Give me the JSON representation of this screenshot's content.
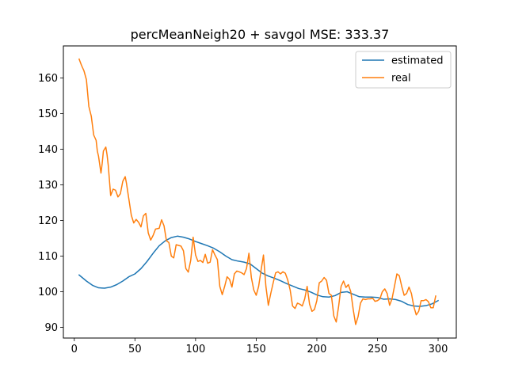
{
  "chart_data": {
    "type": "line",
    "title": "percMeanNeigh20 + savgol MSE: 333.37",
    "xlabel": "",
    "ylabel": "",
    "xlim": [
      -9,
      315
    ],
    "ylim": [
      87,
      169
    ],
    "xticks": [
      0,
      50,
      100,
      150,
      200,
      250,
      300
    ],
    "yticks": [
      90,
      100,
      110,
      120,
      130,
      140,
      150,
      160
    ],
    "grid": false,
    "legend_position": "top-right",
    "series": [
      {
        "name": "estimated",
        "color": "#1f77b4",
        "x": [
          4,
          10,
          15,
          20,
          25,
          30,
          35,
          40,
          45,
          50,
          55,
          60,
          65,
          70,
          75,
          80,
          85,
          90,
          95,
          100,
          105,
          110,
          115,
          120,
          125,
          130,
          135,
          140,
          145,
          150,
          155,
          160,
          165,
          170,
          175,
          180,
          185,
          190,
          195,
          200,
          205,
          210,
          215,
          220,
          225,
          230,
          235,
          240,
          245,
          250,
          255,
          260,
          265,
          270,
          275,
          280,
          285,
          290,
          295,
          300
        ],
        "y": [
          104.7,
          103.0,
          101.8,
          101.1,
          101.0,
          101.3,
          102.0,
          103.0,
          104.2,
          105.0,
          106.5,
          108.5,
          110.8,
          112.9,
          114.3,
          115.2,
          115.6,
          115.3,
          114.8,
          114.1,
          113.5,
          112.9,
          112.2,
          111.2,
          110.0,
          109.0,
          108.6,
          108.3,
          107.8,
          106.5,
          105.2,
          104.4,
          103.8,
          103.1,
          102.3,
          101.6,
          100.9,
          100.5,
          99.9,
          99.1,
          98.6,
          98.5,
          98.9,
          99.8,
          100.0,
          99.3,
          98.6,
          98.5,
          98.5,
          98.4,
          97.9,
          98.0,
          97.8,
          97.3,
          96.4,
          96.0,
          95.9,
          96.1,
          96.6,
          97.5
        ]
      },
      {
        "name": "real",
        "color": "#ff7f0e",
        "x": [
          4,
          6,
          8,
          10,
          12,
          14,
          16,
          18,
          19,
          20,
          22,
          23,
          24,
          26,
          27,
          28,
          30,
          32,
          34,
          36,
          38,
          40,
          42,
          43,
          45,
          47,
          49,
          51,
          53,
          55,
          57,
          59,
          61,
          63,
          65,
          67,
          70,
          72,
          74,
          76,
          78,
          80,
          82,
          84,
          86,
          88,
          90,
          92,
          94,
          96,
          98,
          100,
          102,
          104,
          106,
          108,
          110,
          112,
          114,
          116,
          118,
          120,
          122,
          124,
          126,
          128,
          130,
          132,
          134,
          136,
          138,
          140,
          142,
          144,
          146,
          148,
          150,
          152,
          154,
          156,
          158,
          160,
          162,
          164,
          166,
          168,
          170,
          172,
          174,
          176,
          178,
          180,
          182,
          184,
          186,
          188,
          190,
          192,
          194,
          196,
          198,
          200,
          202,
          204,
          206,
          208,
          210,
          212,
          214,
          216,
          218,
          220,
          222,
          224,
          226,
          228,
          230,
          232,
          234,
          236,
          238,
          240,
          242,
          244,
          246,
          248,
          250,
          252,
          254,
          256,
          258,
          260,
          262,
          264,
          266,
          268,
          270,
          272,
          274,
          276,
          278,
          280,
          282,
          284,
          286,
          288,
          290,
          292,
          294,
          296,
          298
        ],
        "y": [
          165.3,
          163.5,
          162.0,
          159.5,
          152.0,
          149.3,
          144.0,
          142.5,
          139.5,
          138.0,
          133.3,
          136.0,
          139.5,
          140.6,
          138.5,
          135.5,
          127.0,
          128.8,
          128.5,
          126.6,
          127.5,
          131.0,
          132.3,
          130.5,
          126.0,
          121.5,
          119.3,
          120.3,
          119.5,
          118.2,
          121.3,
          122.0,
          116.5,
          114.5,
          115.8,
          117.6,
          117.8,
          120.2,
          118.5,
          114.3,
          113.8,
          110.0,
          109.5,
          113.2,
          113.0,
          112.8,
          111.5,
          106.5,
          105.5,
          108.8,
          115.3,
          110.3,
          108.5,
          108.8,
          108.2,
          110.5,
          108.0,
          108.3,
          111.8,
          110.3,
          109.0,
          101.5,
          99.2,
          101.5,
          104.2,
          103.5,
          101.3,
          105.0,
          105.8,
          105.6,
          105.3,
          104.8,
          106.5,
          110.8,
          104.0,
          100.5,
          99.0,
          101.5,
          106.0,
          110.3,
          101.5,
          96.2,
          99.5,
          102.5,
          105.3,
          105.6,
          105.0,
          105.6,
          105.2,
          103.3,
          100.5,
          96.0,
          95.3,
          96.8,
          96.5,
          96.0,
          98.0,
          101.5,
          96.5,
          94.5,
          95.0,
          97.5,
          102.5,
          103.0,
          104.0,
          103.2,
          99.5,
          99.0,
          93.2,
          91.5,
          96.0,
          101.5,
          103.0,
          101.2,
          102.0,
          100.0,
          95.0,
          90.8,
          93.0,
          96.8,
          98.0,
          97.8,
          98.0,
          98.0,
          98.2,
          97.3,
          97.5,
          98.0,
          100.0,
          100.8,
          99.5,
          96.2,
          98.0,
          101.5,
          105.0,
          104.5,
          101.5,
          99.0,
          99.5,
          101.3,
          99.5,
          95.8,
          93.5,
          94.5,
          97.5,
          97.5,
          97.8,
          97.2,
          95.5,
          95.5,
          98.8
        ]
      }
    ]
  }
}
